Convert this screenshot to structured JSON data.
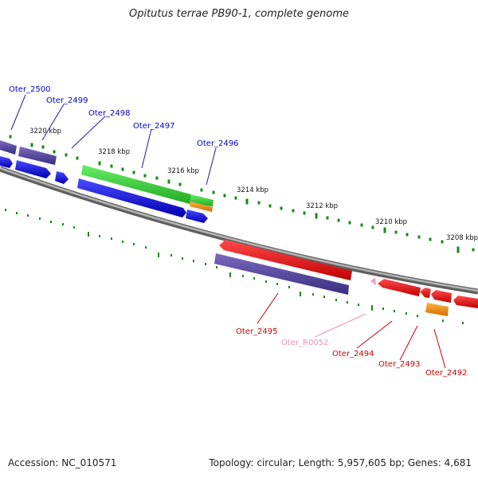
{
  "title": "Opitutus terrae PB90-1, complete genome",
  "accession": "Accession: NC_010571",
  "topology": "Topology: circular; Length: 5,957,605 bp; Genes: 4,681",
  "ruler_labels": [
    "3220 kbp",
    "3218 kbp",
    "3216 kbp",
    "3214 kbp",
    "3212 kbp",
    "3210 kbp",
    "3208 kbp"
  ],
  "genes_forward": [
    {
      "locus": "Oter_2500",
      "color": "#0000cc"
    },
    {
      "locus": "Oter_2499",
      "color": "#0000cc"
    },
    {
      "locus": "Oter_2498",
      "color": "#0000cc"
    },
    {
      "locus": "Oter_2497",
      "color": "#0000cc"
    },
    {
      "locus": "Oter_2496",
      "color": "#0000cc"
    }
  ],
  "genes_reverse": [
    {
      "locus": "Oter_2495",
      "color": "#dd0000"
    },
    {
      "locus": "Oter_R0052",
      "color": "#f090b0"
    },
    {
      "locus": "Oter_2494",
      "color": "#dd0000"
    },
    {
      "locus": "Oter_2493",
      "color": "#dd0000"
    },
    {
      "locus": "Oter_2492",
      "color": "#dd0000"
    }
  ],
  "colors": {
    "cds_forward": "#1010e0",
    "cds_reverse": "#ee0000",
    "cog": "#5a4aa0",
    "green_feature": "#33cc33",
    "orange_feature": "#f08c00",
    "rna": "#f4a0c0",
    "backbone": "#888888",
    "ticks": "#1a8a1a"
  }
}
